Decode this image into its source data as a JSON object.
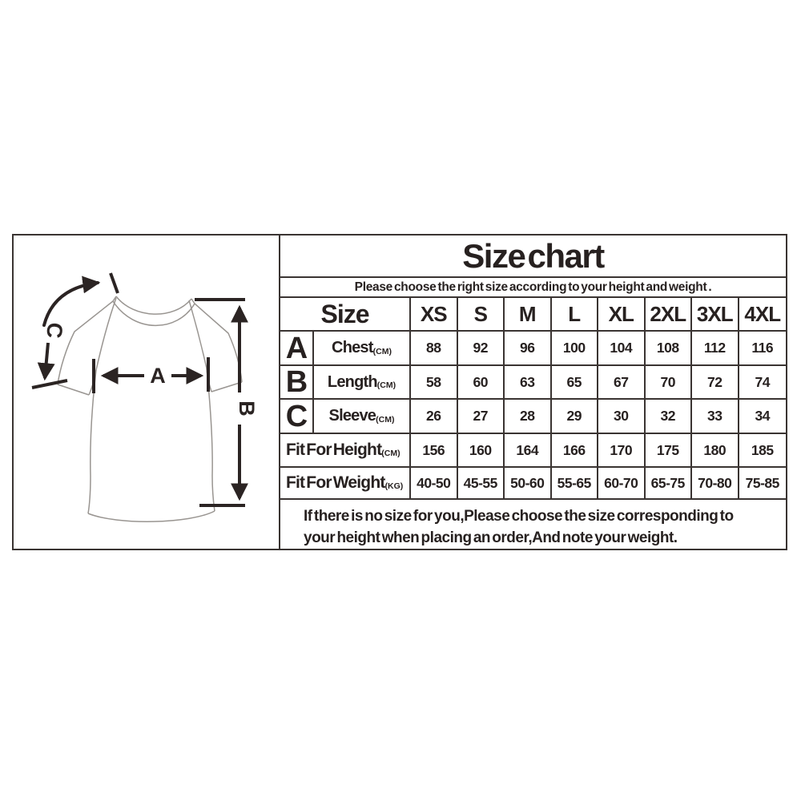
{
  "colors": {
    "line": "#3a3432",
    "text": "#272120",
    "shirt_outline": "#999591",
    "background": "#ffffff"
  },
  "diagram": {
    "label_a": "A",
    "label_b": "B",
    "label_c": "C"
  },
  "table": {
    "title": "Size chart",
    "subtitle": "Please choose the right size according to your height and weight .",
    "header": {
      "size_label": "Size",
      "sizes": [
        "XS",
        "S",
        "M",
        "L",
        "XL",
        "2XL",
        "3XL",
        "4XL"
      ]
    },
    "rows": [
      {
        "letter": "A",
        "label": "Chest",
        "unit": "(CM)",
        "values": [
          "88",
          "92",
          "96",
          "100",
          "104",
          "108",
          "112",
          "116"
        ]
      },
      {
        "letter": "B",
        "label": "Length",
        "unit": "(CM)",
        "values": [
          "58",
          "60",
          "63",
          "65",
          "67",
          "70",
          "72",
          "74"
        ]
      },
      {
        "letter": "C",
        "label": "Sleeve",
        "unit": "(CM)",
        "values": [
          "26",
          "27",
          "28",
          "29",
          "30",
          "32",
          "33",
          "34"
        ]
      },
      {
        "letter": "",
        "label": "Fit For Height",
        "unit": "(CM)",
        "values": [
          "156",
          "160",
          "164",
          "166",
          "170",
          "175",
          "180",
          "185"
        ]
      },
      {
        "letter": "",
        "label": "Fit For Weight",
        "unit": "(KG)",
        "values": [
          "40-50",
          "45-55",
          "50-60",
          "55-65",
          "60-70",
          "65-75",
          "70-80",
          "75-85"
        ]
      }
    ],
    "note_line1": "If there is no size for you,Please choose the size corresponding to",
    "note_line2": "your height when placing an order,And note your weight."
  },
  "chart_data": {
    "type": "table",
    "title": "Size chart",
    "categories": [
      "XS",
      "S",
      "M",
      "L",
      "XL",
      "2XL",
      "3XL",
      "4XL"
    ],
    "series": [
      {
        "name": "Chest (CM)",
        "values": [
          88,
          92,
          96,
          100,
          104,
          108,
          112,
          116
        ]
      },
      {
        "name": "Length (CM)",
        "values": [
          58,
          60,
          63,
          65,
          67,
          70,
          72,
          74
        ]
      },
      {
        "name": "Sleeve (CM)",
        "values": [
          26,
          27,
          28,
          29,
          30,
          32,
          33,
          34
        ]
      },
      {
        "name": "Fit For Height (CM)",
        "values": [
          156,
          160,
          164,
          166,
          170,
          175,
          180,
          185
        ]
      },
      {
        "name": "Fit For Weight (KG)",
        "values": [
          "40-50",
          "45-55",
          "50-60",
          "55-65",
          "60-70",
          "65-75",
          "70-80",
          "75-85"
        ]
      }
    ]
  }
}
